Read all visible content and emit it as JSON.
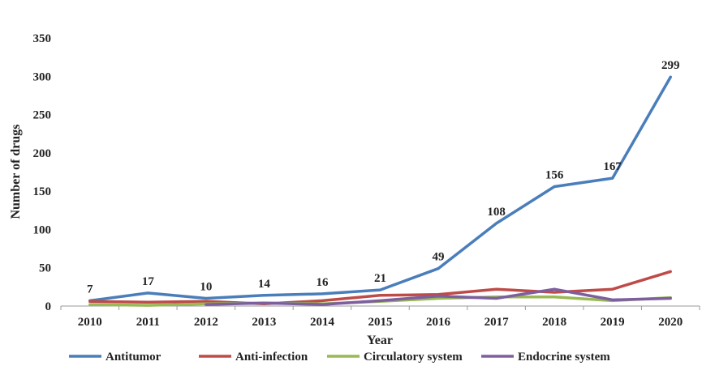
{
  "chart_data": {
    "type": "line",
    "title": "",
    "xlabel": "Year",
    "ylabel": "Number of drugs",
    "x": [
      "2010",
      "2011",
      "2012",
      "2013",
      "2014",
      "2015",
      "2016",
      "2017",
      "2018",
      "2019",
      "2020"
    ],
    "ylim": [
      0,
      350
    ],
    "yticks": [
      0,
      50,
      100,
      150,
      200,
      250,
      300,
      350
    ],
    "grid": false,
    "legend_position": "bottom",
    "series": [
      {
        "name": "Antitumor",
        "color": "#4A7EBB",
        "show_labels": true,
        "values": [
          7,
          17,
          10,
          14,
          16,
          21,
          49,
          108,
          156,
          167,
          299
        ]
      },
      {
        "name": "Anti-infection",
        "color": "#BE4B48",
        "show_labels": false,
        "values": [
          6,
          5,
          6,
          3,
          7,
          14,
          15,
          22,
          18,
          22,
          45
        ]
      },
      {
        "name": "Circulatory system",
        "color": "#98B954",
        "show_labels": false,
        "values": [
          2,
          1,
          3,
          4,
          3,
          6,
          10,
          12,
          12,
          7,
          11
        ]
      },
      {
        "name": "Endocrine system",
        "color": "#7D5FA0",
        "show_labels": false,
        "values": [
          null,
          null,
          2,
          4,
          2,
          7,
          13,
          10,
          22,
          8,
          10
        ]
      }
    ]
  }
}
